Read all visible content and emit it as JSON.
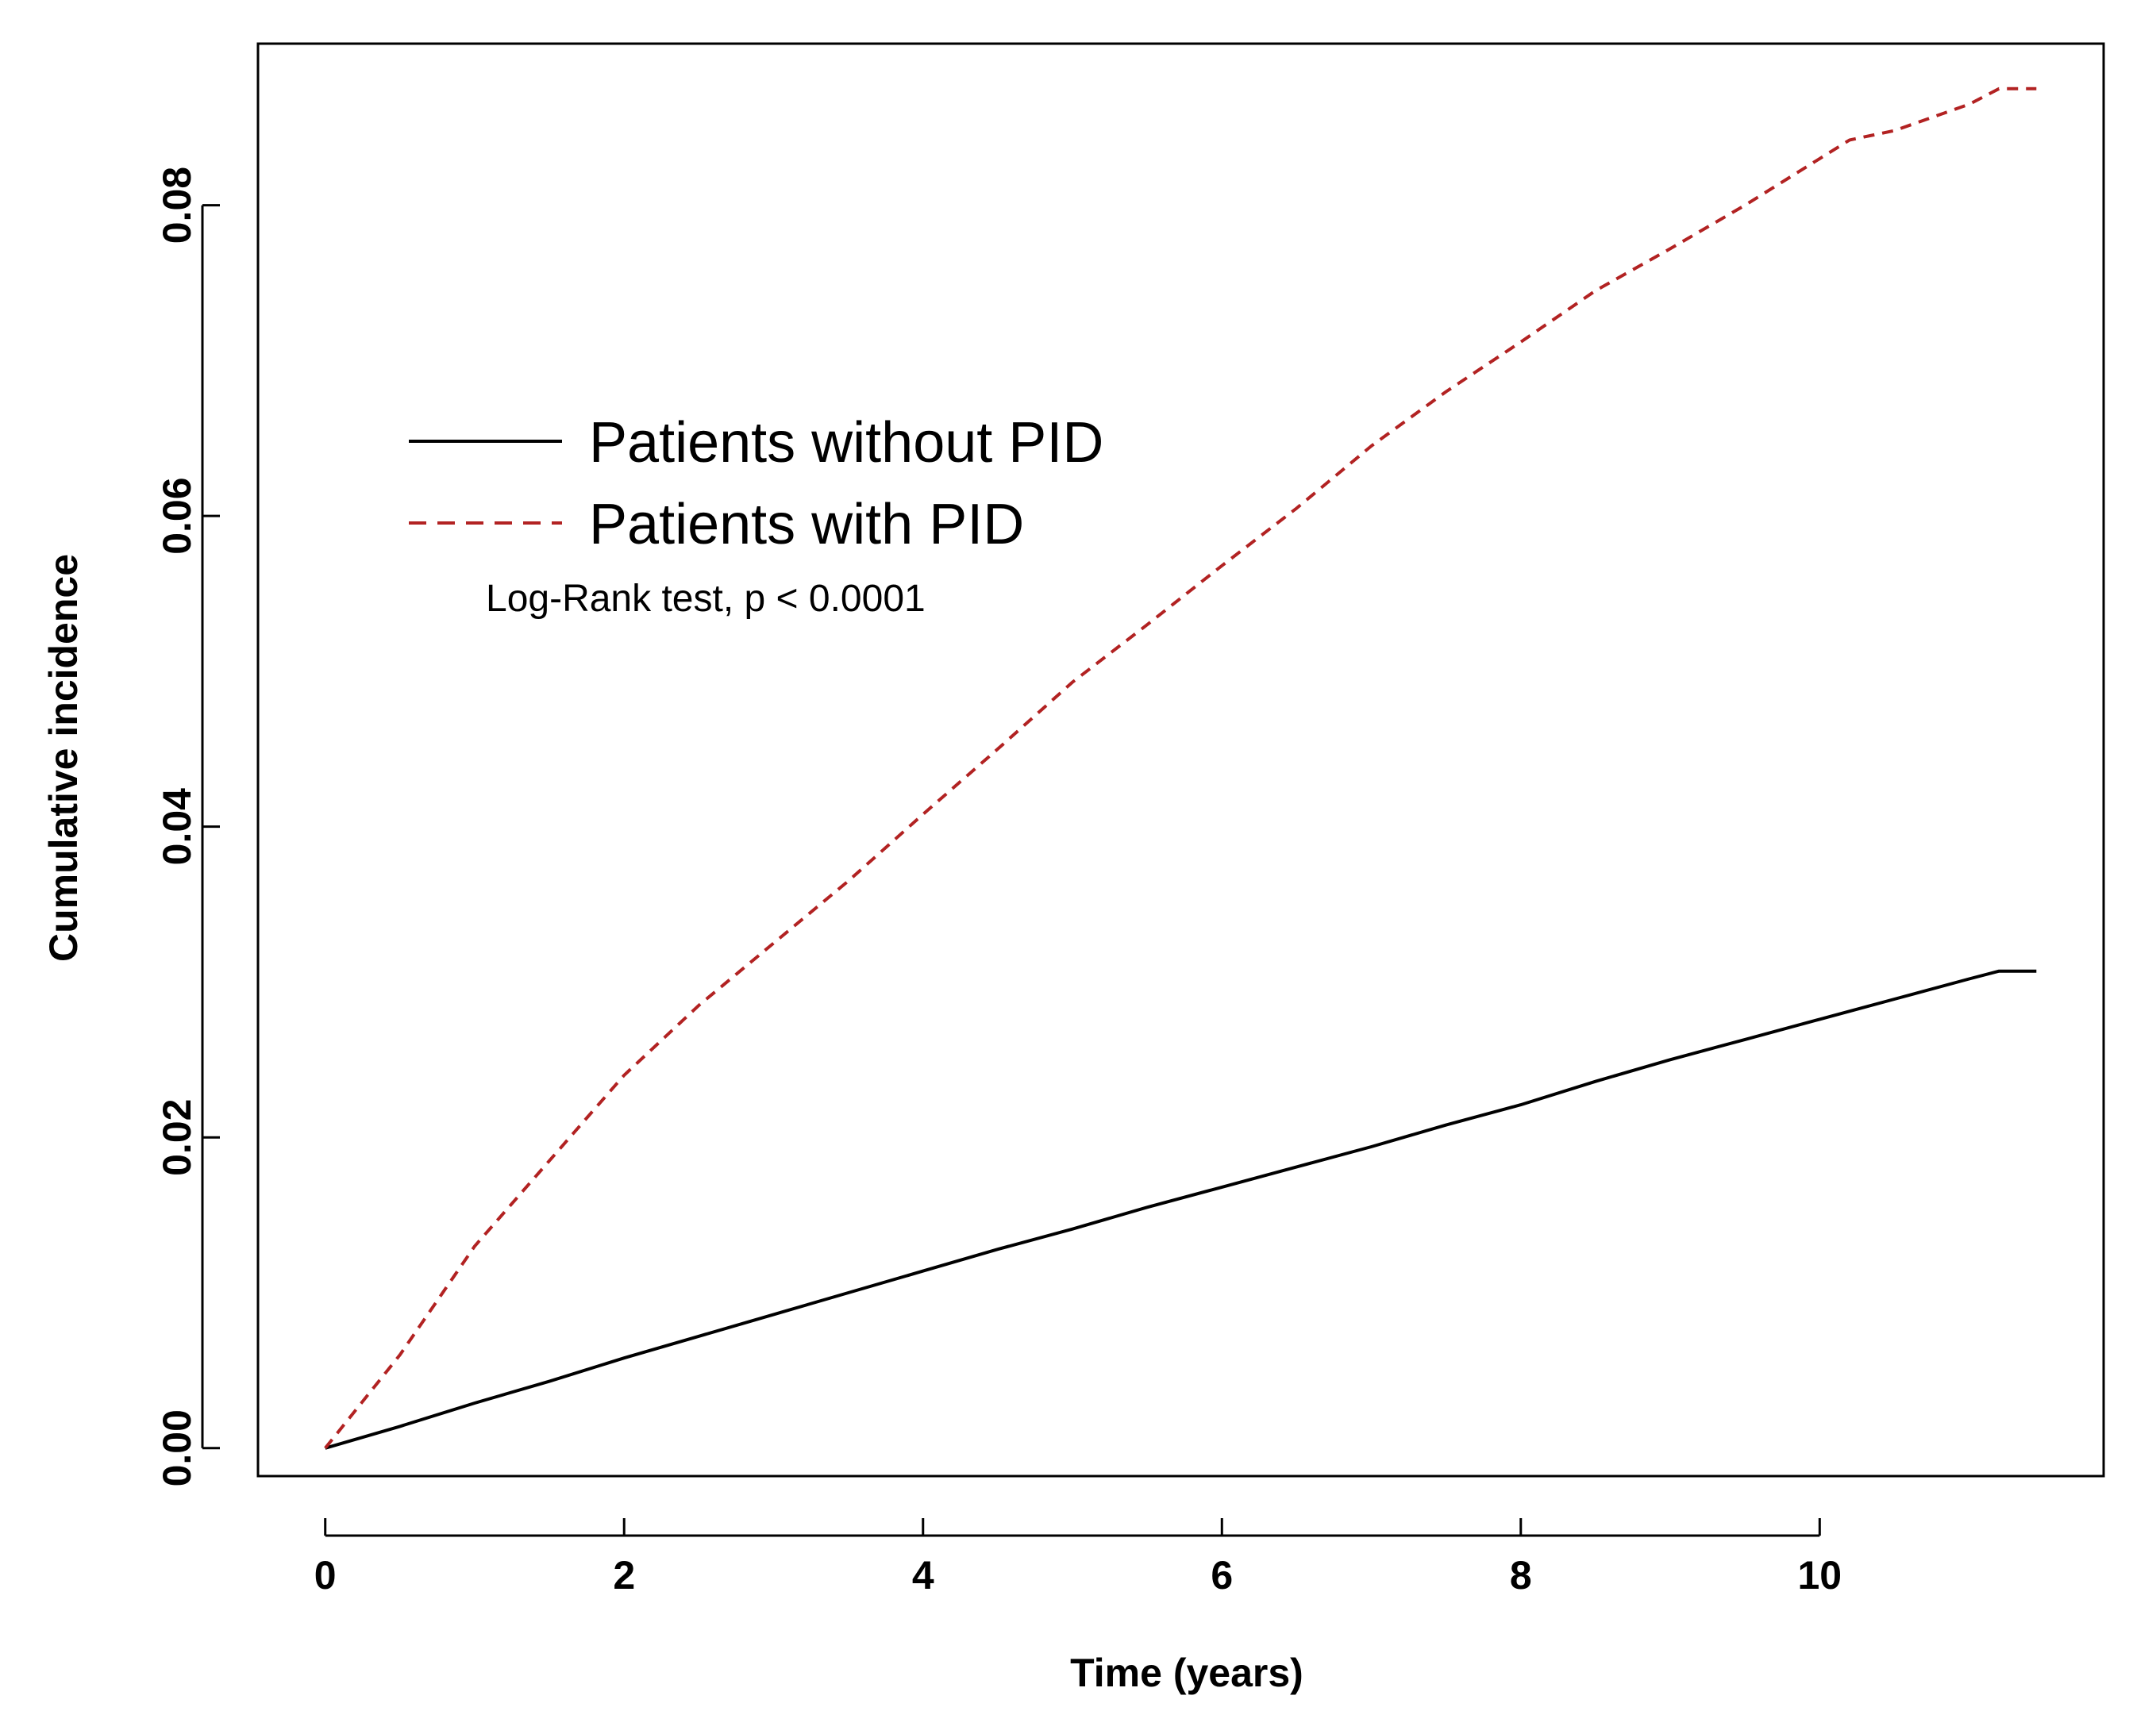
{
  "chart_data": {
    "type": "line",
    "title": "",
    "xlabel": "Time (years)",
    "ylabel": "Cumulative incidence",
    "xlim": [
      -0.45,
      11.9
    ],
    "ylim": [
      -0.0018,
      0.0904
    ],
    "xticks": [
      0,
      2,
      4,
      6,
      8,
      10
    ],
    "xtick_labels": [
      "0",
      "2",
      "4",
      "6",
      "8",
      "10"
    ],
    "yticks": [
      0.0,
      0.02,
      0.04,
      0.06,
      0.08
    ],
    "ytick_labels": [
      "0.00",
      "0.02",
      "0.04",
      "0.06",
      "0.08"
    ],
    "grid": false,
    "legend_position": "upper-left",
    "annotation": "Log-Rank test, p < 0.0001",
    "series": [
      {
        "name": "Patients without PID",
        "color": "#000000",
        "line_style": "solid",
        "x": [
          0,
          0.5,
          1,
          1.5,
          2,
          2.5,
          3,
          3.5,
          4,
          4.5,
          5,
          5.5,
          6,
          6.5,
          7,
          7.5,
          8,
          8.5,
          9,
          9.5,
          10,
          10.5,
          11,
          11.2,
          11.45
        ],
        "y": [
          0.0,
          0.0014,
          0.0029,
          0.0043,
          0.0058,
          0.0072,
          0.0086,
          0.01,
          0.0114,
          0.0128,
          0.0141,
          0.0155,
          0.0168,
          0.0181,
          0.0194,
          0.0208,
          0.0221,
          0.0236,
          0.025,
          0.0263,
          0.0276,
          0.0289,
          0.0302,
          0.0307,
          0.0307
        ]
      },
      {
        "name": "Patients with PID",
        "color": "#b22222",
        "line_style": "dashed",
        "x": [
          0,
          0.5,
          1,
          1.5,
          2,
          2.5,
          3,
          3.5,
          4,
          4.5,
          5,
          5.5,
          6,
          6.5,
          7,
          7.5,
          8,
          8.5,
          9,
          9.5,
          10,
          10.2,
          10.5,
          11,
          11.2,
          11.45
        ],
        "y": [
          0.0,
          0.006,
          0.013,
          0.0185,
          0.024,
          0.0285,
          0.0325,
          0.0365,
          0.0408,
          0.045,
          0.0493,
          0.053,
          0.0568,
          0.0605,
          0.0645,
          0.068,
          0.0712,
          0.0745,
          0.0772,
          0.08,
          0.083,
          0.0842,
          0.0848,
          0.0865,
          0.0875,
          0.0875
        ]
      }
    ]
  }
}
